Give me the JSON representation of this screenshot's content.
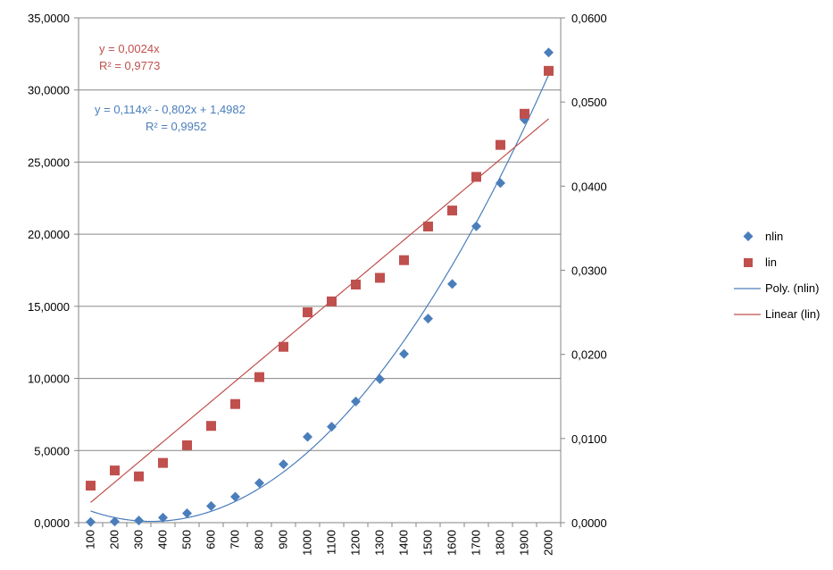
{
  "chart_data": {
    "type": "scatter",
    "x": [
      100,
      200,
      300,
      400,
      500,
      600,
      700,
      800,
      900,
      1000,
      1100,
      1200,
      1300,
      1400,
      1500,
      1600,
      1700,
      1800,
      1900,
      2000
    ],
    "y_left_ticks": [
      "0,0000",
      "5,0000",
      "10,0000",
      "15,0000",
      "20,0000",
      "25,0000",
      "30,0000",
      "35,0000"
    ],
    "y_right_ticks": [
      "0,0000",
      "0,0100",
      "0,0200",
      "0,0300",
      "0,0400",
      "0,0500",
      "0,0600"
    ],
    "ylim_left": [
      0,
      35
    ],
    "ylim_right": [
      0,
      0.06
    ],
    "grid": "horizontal",
    "legend_position": "right",
    "series": [
      {
        "name": "nlin",
        "axis": "left",
        "marker": "diamond",
        "color": "#4a7ebb",
        "values": [
          0.05,
          0.08,
          0.15,
          0.35,
          0.65,
          1.15,
          1.8,
          2.75,
          4.05,
          5.95,
          6.65,
          8.4,
          9.95,
          11.7,
          14.15,
          16.55,
          20.55,
          23.55,
          27.95,
          32.6
        ]
      },
      {
        "name": "lin",
        "axis": "right",
        "marker": "square",
        "color": "#c0504d",
        "values": [
          0.0044,
          0.0062,
          0.0055,
          0.0071,
          0.0092,
          0.0115,
          0.0141,
          0.0173,
          0.0209,
          0.025,
          0.0263,
          0.0283,
          0.0291,
          0.0312,
          0.0352,
          0.0371,
          0.0411,
          0.0449,
          0.0486,
          0.0537
        ]
      }
    ],
    "trendlines": [
      {
        "name": "Poly. (nlin)",
        "of": "nlin",
        "kind": "polynomial",
        "coefficients": [
          1.4982,
          -0.802,
          0.114
        ],
        "equation": "y = 0,114x² - 0,802x + 1,4982",
        "r2": "R² = 0,9952",
        "color": "#4a7ebb"
      },
      {
        "name": "Linear (lin)",
        "of": "lin",
        "kind": "linear",
        "coefficients": [
          0,
          0.0024
        ],
        "equation": "y = 0,0024x",
        "r2": "R² = 0,9773",
        "color": "#c0504d"
      }
    ]
  }
}
